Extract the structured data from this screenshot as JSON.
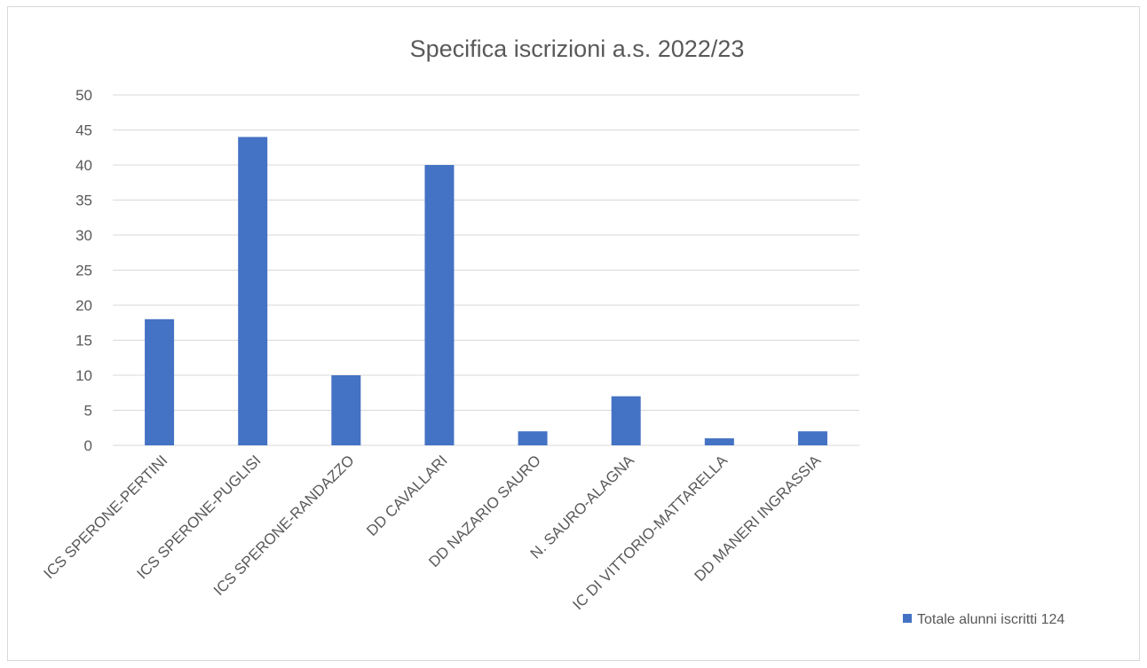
{
  "chart_data": {
    "type": "bar",
    "title": "Specifica iscrizioni a.s. 2022/23",
    "xlabel": "",
    "ylabel": "",
    "categories": [
      "ICS SPERONE-PERTINI",
      "ICS SPERONE-PUGLISI",
      "ICS SPERONE-RANDAZZO",
      "DD CAVALLARI",
      "DD NAZARIO SAURO",
      "N. SAURO-ALAGNA",
      "IC DI VITTORIO-MATTARELLA",
      "DD MANERI INGRASSIA"
    ],
    "series": [
      {
        "name": "Totale alunni iscritti 124",
        "values": [
          18,
          44,
          10,
          40,
          2,
          7,
          1,
          2
        ],
        "color": "#4472c4"
      }
    ],
    "ylim": [
      0,
      50
    ],
    "yticks": [
      0,
      5,
      10,
      15,
      20,
      25,
      30,
      35,
      40,
      45,
      50
    ],
    "grid": true,
    "legend_position": "bottom-right"
  }
}
